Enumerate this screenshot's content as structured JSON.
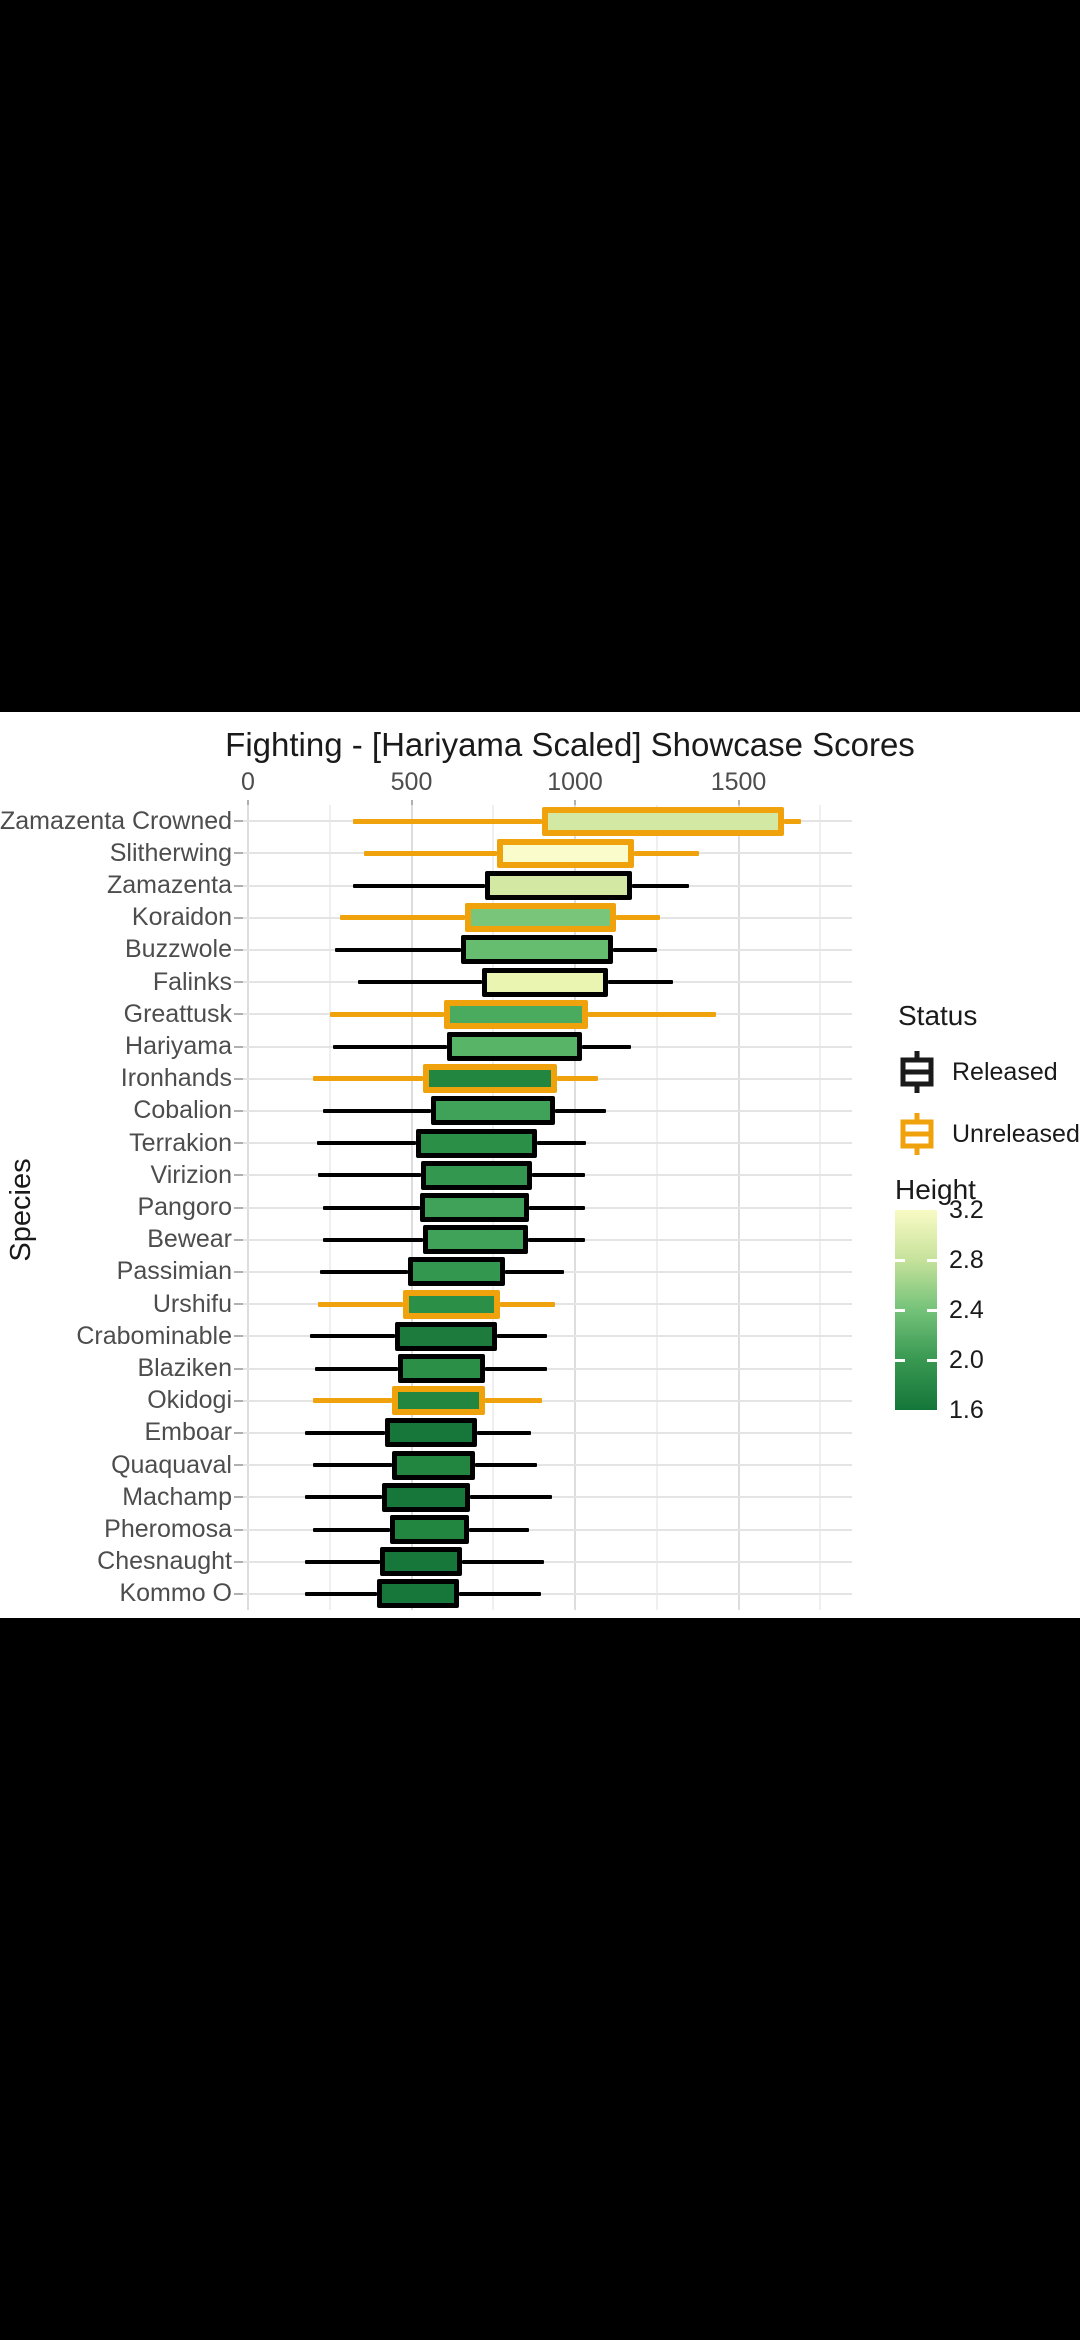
{
  "chart_data": {
    "type": "boxplot",
    "orientation": "horizontal",
    "title": "Fighting - [Hariyama Scaled] Showcase Scores",
    "xlabel": "",
    "ylabel": "Species",
    "xlim": [
      0,
      1847
    ],
    "x_major_ticks": [
      0,
      500,
      1000,
      1500
    ],
    "x_minor_ticks": [
      250,
      750,
      1250,
      1750
    ],
    "grid": "on",
    "series": [
      {
        "species": "Zamazenta Crowned",
        "status": "Unreleased",
        "height": 2.9,
        "fill": "#d3e8a3",
        "whisker_low": 320,
        "q1": 900,
        "q3": 1640,
        "whisker_high": 1690
      },
      {
        "species": "Slitherwing",
        "status": "Unreleased",
        "height": 3.2,
        "fill": "#fbfccb",
        "whisker_low": 355,
        "q1": 760,
        "q3": 1180,
        "whisker_high": 1380
      },
      {
        "species": "Zamazenta",
        "status": "Released",
        "height": 2.9,
        "fill": "#d3e8a3",
        "whisker_low": 320,
        "q1": 725,
        "q3": 1175,
        "whisker_high": 1350
      },
      {
        "species": "Koraidon",
        "status": "Unreleased",
        "height": 2.5,
        "fill": "#79c67b",
        "whisker_low": 280,
        "q1": 665,
        "q3": 1125,
        "whisker_high": 1260
      },
      {
        "species": "Buzzwole",
        "status": "Released",
        "height": 2.4,
        "fill": "#66bc6f",
        "whisker_low": 265,
        "q1": 650,
        "q3": 1115,
        "whisker_high": 1250
      },
      {
        "species": "Falinks",
        "status": "Released",
        "height": 3.0,
        "fill": "#e9f5b1",
        "whisker_low": 335,
        "q1": 715,
        "q3": 1100,
        "whisker_high": 1300
      },
      {
        "species": "Greattusk",
        "status": "Unreleased",
        "height": 2.2,
        "fill": "#4aab5e",
        "whisker_low": 250,
        "q1": 600,
        "q3": 1040,
        "whisker_high": 1430
      },
      {
        "species": "Hariyama",
        "status": "Released",
        "height": 2.3,
        "fill": "#58b467",
        "whisker_low": 260,
        "q1": 610,
        "q3": 1020,
        "whisker_high": 1170
      },
      {
        "species": "Ironhands",
        "status": "Unreleased",
        "height": 1.8,
        "fill": "#228540",
        "whisker_low": 200,
        "q1": 535,
        "q3": 945,
        "whisker_high": 1070
      },
      {
        "species": "Cobalion",
        "status": "Released",
        "height": 2.1,
        "fill": "#40a159",
        "whisker_low": 230,
        "q1": 560,
        "q3": 940,
        "whisker_high": 1095
      },
      {
        "species": "Terrakion",
        "status": "Released",
        "height": 1.9,
        "fill": "#2b8f48",
        "whisker_low": 210,
        "q1": 515,
        "q3": 885,
        "whisker_high": 1035
      },
      {
        "species": "Virizion",
        "status": "Released",
        "height": 2.0,
        "fill": "#339750",
        "whisker_low": 215,
        "q1": 530,
        "q3": 870,
        "whisker_high": 1030
      },
      {
        "species": "Pangoro",
        "status": "Released",
        "height": 2.1,
        "fill": "#40a159",
        "whisker_low": 230,
        "q1": 525,
        "q3": 860,
        "whisker_high": 1030
      },
      {
        "species": "Bewear",
        "status": "Released",
        "height": 2.1,
        "fill": "#40a159",
        "whisker_low": 230,
        "q1": 535,
        "q3": 855,
        "whisker_high": 1030
      },
      {
        "species": "Passimian",
        "status": "Released",
        "height": 2.0,
        "fill": "#339750",
        "whisker_low": 220,
        "q1": 490,
        "q3": 785,
        "whisker_high": 965
      },
      {
        "species": "Urshifu",
        "status": "Unreleased",
        "height": 1.9,
        "fill": "#2b8f48",
        "whisker_low": 215,
        "q1": 475,
        "q3": 770,
        "whisker_high": 940
      },
      {
        "species": "Crabominable",
        "status": "Released",
        "height": 1.7,
        "fill": "#1d7c3d",
        "whisker_low": 190,
        "q1": 450,
        "q3": 760,
        "whisker_high": 915
      },
      {
        "species": "Blaziken",
        "status": "Released",
        "height": 1.9,
        "fill": "#2b8f48",
        "whisker_low": 205,
        "q1": 460,
        "q3": 725,
        "whisker_high": 915
      },
      {
        "species": "Okidogi",
        "status": "Unreleased",
        "height": 1.8,
        "fill": "#228540",
        "whisker_low": 200,
        "q1": 440,
        "q3": 725,
        "whisker_high": 900
      },
      {
        "species": "Emboar",
        "status": "Released",
        "height": 1.6,
        "fill": "#17763a",
        "whisker_low": 175,
        "q1": 420,
        "q3": 700,
        "whisker_high": 865
      },
      {
        "species": "Quaquaval",
        "status": "Released",
        "height": 1.8,
        "fill": "#228540",
        "whisker_low": 200,
        "q1": 440,
        "q3": 695,
        "whisker_high": 885
      },
      {
        "species": "Machamp",
        "status": "Released",
        "height": 1.6,
        "fill": "#17763a",
        "whisker_low": 175,
        "q1": 410,
        "q3": 680,
        "whisker_high": 930
      },
      {
        "species": "Pheromosa",
        "status": "Released",
        "height": 1.8,
        "fill": "#228540",
        "whisker_low": 200,
        "q1": 435,
        "q3": 675,
        "whisker_high": 860
      },
      {
        "species": "Chesnaught",
        "status": "Released",
        "height": 1.6,
        "fill": "#17763a",
        "whisker_low": 175,
        "q1": 405,
        "q3": 655,
        "whisker_high": 905
      },
      {
        "species": "Kommo O",
        "status": "Released",
        "height": 1.6,
        "fill": "#17763a",
        "whisker_low": 175,
        "q1": 395,
        "q3": 645,
        "whisker_high": 895
      }
    ],
    "legend": {
      "status": {
        "title": "Status",
        "items": [
          {
            "label": "Released",
            "color": "#1a1a1a"
          },
          {
            "label": "Unreleased",
            "color": "#f0a20c"
          }
        ]
      },
      "height": {
        "title": "Height",
        "tick_labels": [
          "3.2",
          "2.8",
          "2.4",
          "2.0",
          "1.6"
        ],
        "gradient": [
          "#f9fbc4",
          "#c6e29b",
          "#74c279",
          "#389851",
          "#15763a"
        ]
      }
    },
    "style": {
      "released_border": "#000000",
      "unreleased_border": "#f0a20c",
      "major_grid": "#dddddd",
      "minor_grid": "#efefef",
      "row_grid": "#e4e4e4"
    }
  }
}
